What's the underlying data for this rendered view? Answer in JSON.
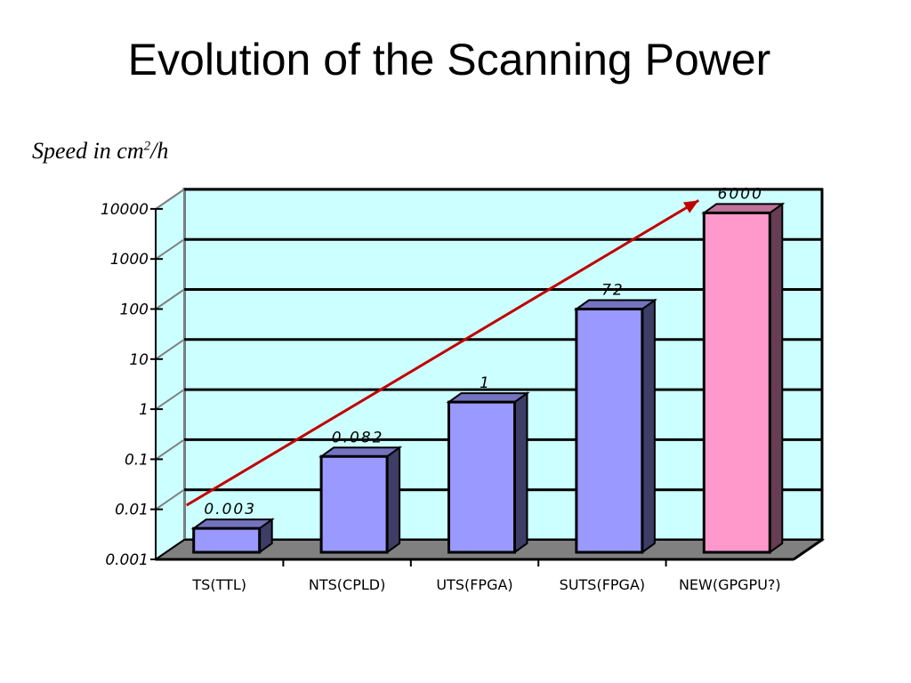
{
  "slide": {
    "title": "Evolution of the Scanning Power",
    "ylabel_main": "Speed in cm",
    "ylabel_exp": "2",
    "ylabel_tail": "/h"
  },
  "chart_data": {
    "type": "bar",
    "scale": "log",
    "ylim": [
      0.001,
      10000
    ],
    "yticks": [
      "0.001",
      "0.01",
      "0.1",
      "1",
      "10",
      "100",
      "1000",
      "10000"
    ],
    "categories": [
      "TS(TTL)",
      "NTS(CPLD)",
      "UTS(FPGA)",
      "SUTS(FPGA)",
      "NEW(GPGPU?)"
    ],
    "values": [
      0.003,
      0.082,
      1,
      72,
      6000
    ],
    "data_labels": [
      "0.003",
      "0.082",
      "1",
      "72",
      "6000"
    ],
    "bar_colors": [
      "#9999ff",
      "#9999ff",
      "#9999ff",
      "#9999ff",
      "#ff99cc"
    ],
    "wall_color": "#ccffff",
    "floor_color": "#808080",
    "trend_arrow_color": "#c00000",
    "grid": true,
    "legend": "none"
  }
}
